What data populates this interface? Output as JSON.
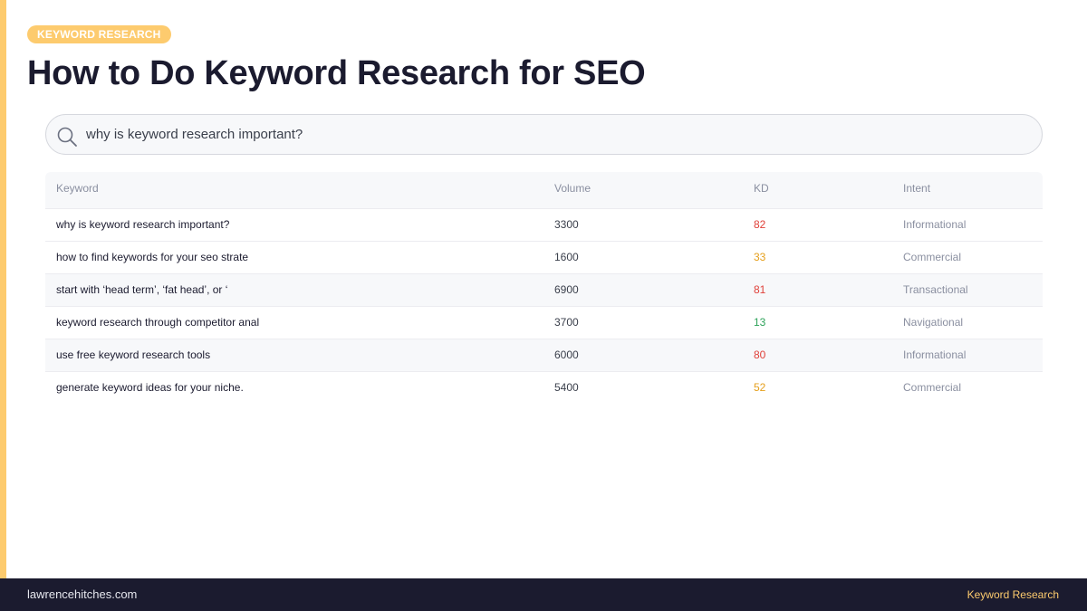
{
  "slide": {
    "tag": "KEYWORD RESEARCH",
    "title": "How to Do Keyword Research for SEO"
  },
  "search": {
    "query": "why is keyword research important?",
    "icon": "search-icon"
  },
  "table": {
    "headers": {
      "keyword": "Keyword",
      "volume": "Volume",
      "kd": "KD",
      "intent": "Intent"
    },
    "rows": [
      {
        "keyword": "why is keyword research important?",
        "volume": "3300",
        "kd": "82",
        "intent": "Informational"
      },
      {
        "keyword": "how to find keywords for your seo strate",
        "volume": "1600",
        "kd": "33",
        "intent": "Commercial"
      },
      {
        "keyword": "start with ‘head term’, ‘fat head’, or ‘",
        "volume": "6900",
        "kd": "81",
        "intent": "Transactional"
      },
      {
        "keyword": "keyword research through competitor anal",
        "volume": "3700",
        "kd": "13",
        "intent": "Navigational"
      },
      {
        "keyword": "use free keyword research tools",
        "volume": "6000",
        "kd": "80",
        "intent": "Informational"
      },
      {
        "keyword": "generate keyword ideas for your niche.",
        "volume": "5400",
        "kd": "52",
        "intent": "Commercial"
      }
    ]
  },
  "colors": {
    "accent": "#fdcb6e",
    "kd_high": "#e0413a",
    "kd_medium": "#e59f1b",
    "kd_low": "#2fa35b",
    "footer_bg": "#1b1b2f"
  },
  "footer": {
    "site": "lawrencehitches.com",
    "section": "Keyword Research"
  }
}
